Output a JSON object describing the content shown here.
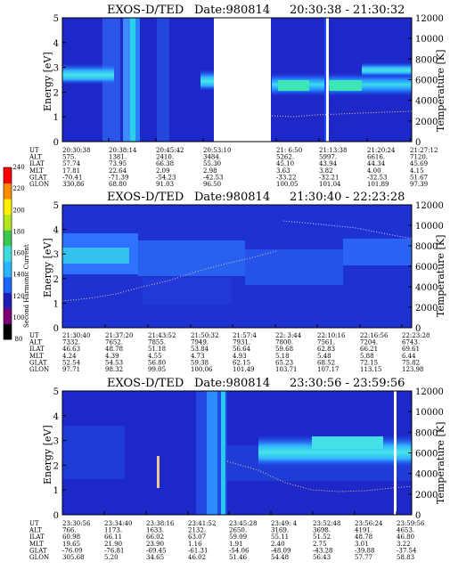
{
  "chart_data": [
    {
      "type": "heatmap",
      "title": "EXOS-D/TED",
      "date_label": "Date:980814",
      "time_range": "20:30:38 - 21:30:32",
      "ylabel": "Energy [eV]",
      "y2label": "Temperature [K]",
      "ylim": [
        0,
        5
      ],
      "y2lim": [
        0,
        12000
      ],
      "yticks": [
        "0",
        "1",
        "2",
        "3",
        "4",
        "5"
      ],
      "y2ticks": [
        "0",
        "2000",
        "4000",
        "6000",
        "8000",
        "10000",
        "12000"
      ],
      "data_gaps": [
        [
          "20:58:30",
          "21:06:50"
        ],
        [
          "21:14:20",
          "21:14:50"
        ]
      ],
      "orbit_params": {
        "labels": [
          "UT",
          "ALT",
          "ILAT",
          "MLT",
          "GLAT",
          "GLON"
        ],
        "columns": [
          [
            "20:30:38",
            "575.",
            "57.74",
            "17.81",
            "-70.41",
            "330.86"
          ],
          [
            "20:38:14",
            "1381.",
            "73.95",
            "22.64",
            "-71.39",
            "68.80"
          ],
          [
            "20:45:42",
            "2410.",
            "66.38",
            "2.09",
            "-54.23",
            "91.03"
          ],
          [
            "20:53:10",
            "3484.",
            "55.30",
            "2.98",
            "-42.53",
            "96.50"
          ],
          [
            "21: 6:50",
            "5262.",
            "45.10",
            "3.63",
            "-33.22",
            "100.05"
          ],
          [
            "21:13:38",
            "5997.",
            "43.94",
            "3.82",
            "-32.21",
            "101.04"
          ],
          [
            "21:20:24",
            "6616.",
            "44.34",
            "4.00",
            "-32.53",
            "101.89"
          ],
          [
            "21:27:12",
            "7120.",
            "45.69",
            "4.15",
            "51.67",
            "97.39"
          ]
        ]
      }
    },
    {
      "type": "heatmap",
      "title": "EXOS-D/TED",
      "date_label": "Date:980814",
      "time_range": "21:30:40 - 22:23:28",
      "ylabel": "Energy [eV]",
      "y2label": "Temperature [K]",
      "ylim": [
        0,
        5
      ],
      "y2lim": [
        0,
        12000
      ],
      "yticks": [
        "0",
        "1",
        "2",
        "3",
        "4",
        "5"
      ],
      "y2ticks": [
        "0",
        "2000",
        "4000",
        "6000",
        "8000",
        "10000",
        "12000"
      ],
      "colorbar": {
        "label": "Second Harmonic Current",
        "range": [
          80,
          240
        ],
        "ticks": [
          "80",
          "100",
          "120",
          "140",
          "160",
          "180",
          "200",
          "220",
          "240"
        ],
        "colors": [
          "#000000",
          "#7a007a",
          "#1e1eb4",
          "#1e64ff",
          "#28b4ff",
          "#3cdcdc",
          "#3cc850",
          "#b4e61e",
          "#fff000",
          "#ff8c00",
          "#ff0000"
        ]
      },
      "orbit_params": {
        "labels": [
          "UT",
          "ALT",
          "ILAT",
          "MLT",
          "GLAT",
          "GLON"
        ],
        "columns": [
          [
            "21:30:40",
            "7332.",
            "46.63",
            "4.24",
            "52.54",
            "97.71"
          ],
          [
            "21:37:20",
            "7652.",
            "48.78",
            "4.39",
            "54.53",
            "98.32"
          ],
          [
            "21:43:52",
            "7855.",
            "51.18",
            "4.55",
            "56.80",
            "99.05"
          ],
          [
            "21:50:32",
            "7949.",
            "53.84",
            "4.73",
            "59.38",
            "100.06"
          ],
          [
            "21:57:4",
            "7931.",
            "56.64",
            "4.93",
            "62.15",
            "101.49"
          ],
          [
            "22: 3:44",
            "7800.",
            "59.68",
            "5.18",
            "65.23",
            "103.71"
          ],
          [
            "22:10:16",
            "7561.",
            "62.83",
            "5.48",
            "68.52",
            "107.17"
          ],
          [
            "22:16:56",
            "7204.",
            "66.21",
            "5.88",
            "72.15",
            "113.15"
          ],
          [
            "22:23:28",
            "6743.",
            "69.61",
            "6.44",
            "75.82",
            "123.98"
          ]
        ]
      }
    },
    {
      "type": "heatmap",
      "title": "EXOS-D/TED",
      "date_label": "Date:980814",
      "time_range": "23:30:56 - 23:59:56",
      "ylabel": "Energy [eV]",
      "y2label": "Temperature [K]",
      "ylim": [
        0,
        5
      ],
      "y2lim": [
        0,
        12000
      ],
      "yticks": [
        "0",
        "1",
        "2",
        "3",
        "4",
        "5"
      ],
      "y2ticks": [
        "0",
        "2000",
        "4000",
        "6000",
        "8000",
        "10000",
        "12000"
      ],
      "data_gaps": [
        [
          "23:57:50",
          "23:58:40"
        ]
      ],
      "orbit_params": {
        "labels": [
          "UT",
          "ALT",
          "ILAT",
          "MLT",
          "GLAT",
          "GLON"
        ],
        "columns": [
          [
            "23:30:56",
            "766.",
            "60.98",
            "19.65",
            "-76.09",
            "305.68"
          ],
          [
            "23:34:40",
            "1173.",
            "66.11",
            "21.90",
            "-76.81",
            "5.20"
          ],
          [
            "23:38:16",
            "1633.",
            "66.02",
            "23.90",
            "-69.45",
            "34.65"
          ],
          [
            "23:41:52",
            "2132.",
            "63.07",
            "1.16",
            "-61.31",
            "46.02"
          ],
          [
            "23:45:28",
            "2650.",
            "59.09",
            "1.91",
            "-54.06",
            "51.46"
          ],
          [
            "23:49: 4",
            "3169.",
            "55.11",
            "2.40",
            "-48.09",
            "54.48"
          ],
          [
            "23:52:48",
            "3698.",
            "51.52",
            "2.75",
            "-43.28",
            "56.43"
          ],
          [
            "23:56:24",
            "4191.",
            "48.78",
            "3.01",
            "-39.88",
            "57.77"
          ],
          [
            "23:59:56",
            "4653.",
            "46.80",
            "3.22",
            "-37.54",
            "58.83"
          ]
        ]
      }
    }
  ]
}
